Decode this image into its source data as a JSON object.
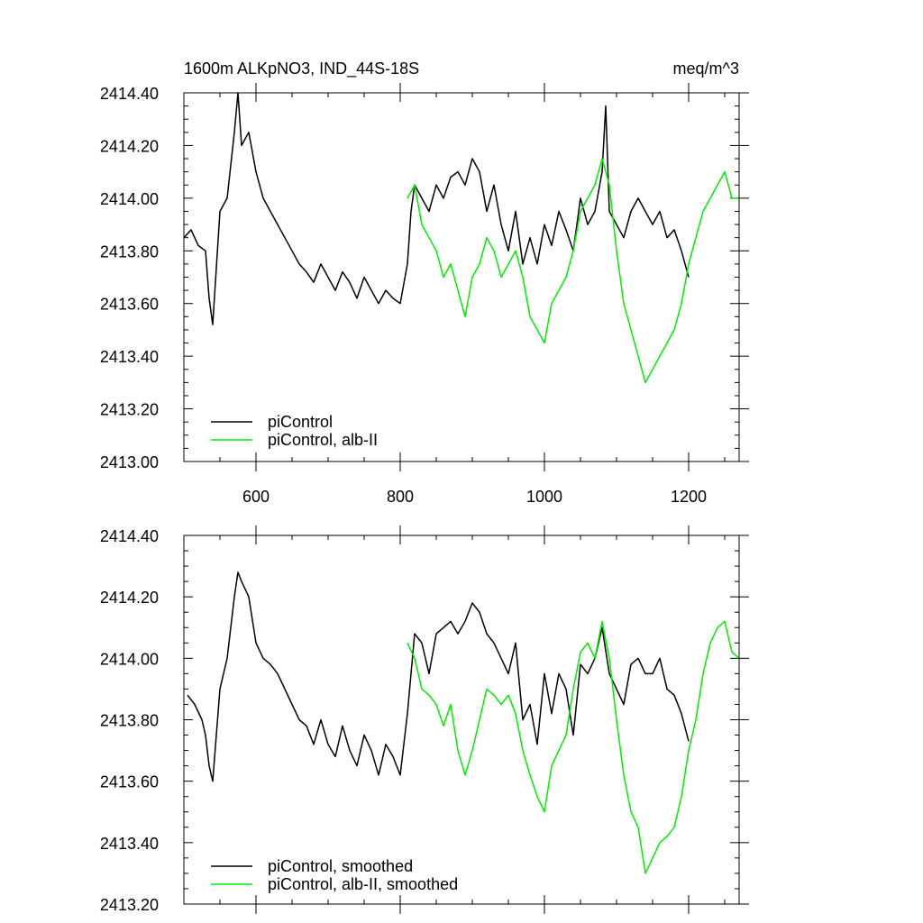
{
  "chart_data": [
    {
      "type": "line",
      "title": "1600m ALKpNO3, IND_44S-18S",
      "units": "meq/m^3",
      "xlabel": "",
      "ylabel": "",
      "xlim": [
        500,
        1270
      ],
      "ylim": [
        2413.0,
        2414.4
      ],
      "x_ticks": [
        600,
        800,
        1000,
        1200
      ],
      "x_tick_labels": [
        "600",
        "800",
        "1000",
        "1200"
      ],
      "y_ticks": [
        2413.0,
        2413.2,
        2413.4,
        2413.6,
        2413.8,
        2414.0,
        2414.2,
        2414.4
      ],
      "y_tick_labels": [
        "2413.00",
        "2413.20",
        "2413.40",
        "2413.60",
        "2413.80",
        "2414.00",
        "2414.20",
        "2414.40"
      ],
      "grid": false,
      "legend_position": "bottom-left",
      "series": [
        {
          "name": "piControl",
          "color": "#000000",
          "x": [
            500,
            510,
            520,
            530,
            535,
            540,
            550,
            560,
            570,
            575,
            580,
            590,
            600,
            610,
            620,
            630,
            640,
            650,
            660,
            670,
            680,
            690,
            700,
            710,
            720,
            730,
            740,
            750,
            760,
            770,
            780,
            790,
            800,
            810,
            815,
            820,
            830,
            840,
            850,
            860,
            870,
            880,
            890,
            900,
            910,
            920,
            930,
            940,
            950,
            960,
            970,
            980,
            990,
            1000,
            1010,
            1020,
            1030,
            1040,
            1050,
            1060,
            1070,
            1080,
            1085,
            1090,
            1100,
            1110,
            1120,
            1130,
            1140,
            1150,
            1160,
            1170,
            1180,
            1190,
            1200
          ],
          "y": [
            2413.85,
            2413.88,
            2413.82,
            2413.8,
            2413.62,
            2413.52,
            2413.95,
            2414.0,
            2414.25,
            2414.4,
            2414.2,
            2414.25,
            2414.1,
            2414.0,
            2413.95,
            2413.9,
            2413.85,
            2413.8,
            2413.75,
            2413.72,
            2413.68,
            2413.75,
            2413.7,
            2413.65,
            2413.72,
            2413.68,
            2413.62,
            2413.7,
            2413.65,
            2413.6,
            2413.65,
            2413.62,
            2413.6,
            2413.75,
            2413.95,
            2414.05,
            2414.0,
            2413.95,
            2414.05,
            2414.0,
            2414.08,
            2414.1,
            2414.05,
            2414.15,
            2414.1,
            2413.95,
            2414.05,
            2413.9,
            2413.8,
            2413.95,
            2413.75,
            2413.85,
            2413.75,
            2413.9,
            2413.82,
            2413.95,
            2413.88,
            2413.8,
            2414.0,
            2413.9,
            2413.95,
            2414.1,
            2414.35,
            2413.95,
            2413.9,
            2413.85,
            2413.95,
            2414.0,
            2413.95,
            2413.9,
            2413.95,
            2413.85,
            2413.88,
            2413.8,
            2413.7
          ]
        },
        {
          "name": "piControl, alb-II",
          "color": "#00ee00",
          "x": [
            810,
            820,
            830,
            840,
            850,
            860,
            870,
            880,
            890,
            900,
            910,
            920,
            930,
            940,
            950,
            960,
            970,
            980,
            990,
            1000,
            1010,
            1020,
            1030,
            1040,
            1050,
            1060,
            1070,
            1080,
            1090,
            1100,
            1110,
            1120,
            1130,
            1140,
            1150,
            1160,
            1170,
            1180,
            1190,
            1200,
            1210,
            1220,
            1230,
            1240,
            1250,
            1260,
            1270
          ],
          "y": [
            2414.0,
            2414.05,
            2413.9,
            2413.85,
            2413.8,
            2413.7,
            2413.75,
            2413.65,
            2413.55,
            2413.7,
            2413.75,
            2413.85,
            2413.8,
            2413.7,
            2413.75,
            2413.8,
            2413.7,
            2413.55,
            2413.5,
            2413.45,
            2413.6,
            2413.65,
            2413.7,
            2413.8,
            2413.95,
            2414.0,
            2414.05,
            2414.15,
            2414.05,
            2413.8,
            2413.6,
            2413.5,
            2413.4,
            2413.3,
            2413.35,
            2413.4,
            2413.45,
            2413.5,
            2413.6,
            2413.75,
            2413.85,
            2413.95,
            2414.0,
            2414.05,
            2414.1,
            2414.0,
            2414.0
          ]
        }
      ]
    },
    {
      "type": "line",
      "title": "",
      "units": "",
      "xlabel": "",
      "ylabel": "",
      "xlim": [
        500,
        1270
      ],
      "ylim": [
        2413.2,
        2414.4
      ],
      "x_ticks": [
        600,
        800,
        1000,
        1200
      ],
      "x_tick_labels": [],
      "y_ticks": [
        2413.2,
        2413.4,
        2413.6,
        2413.8,
        2414.0,
        2414.2,
        2414.4
      ],
      "y_tick_labels": [
        "2413.20",
        "2413.40",
        "2413.60",
        "2413.80",
        "2414.00",
        "2414.20",
        "2414.40"
      ],
      "grid": false,
      "legend_position": "bottom-left",
      "series": [
        {
          "name": "piControl, smoothed",
          "color": "#000000",
          "x": [
            505,
            515,
            525,
            530,
            535,
            540,
            550,
            560,
            570,
            575,
            580,
            590,
            600,
            610,
            620,
            630,
            640,
            650,
            660,
            670,
            680,
            690,
            700,
            710,
            720,
            730,
            740,
            750,
            760,
            770,
            780,
            790,
            800,
            810,
            820,
            830,
            840,
            850,
            860,
            870,
            880,
            890,
            900,
            910,
            920,
            930,
            940,
            950,
            960,
            970,
            980,
            990,
            1000,
            1010,
            1020,
            1030,
            1040,
            1050,
            1060,
            1070,
            1080,
            1090,
            1100,
            1110,
            1120,
            1130,
            1140,
            1150,
            1160,
            1170,
            1180,
            1190,
            1200
          ],
          "y": [
            2413.88,
            2413.85,
            2413.8,
            2413.75,
            2413.65,
            2413.6,
            2413.9,
            2414.0,
            2414.2,
            2414.28,
            2414.25,
            2414.2,
            2414.05,
            2414.0,
            2413.98,
            2413.95,
            2413.9,
            2413.85,
            2413.8,
            2413.78,
            2413.72,
            2413.8,
            2413.72,
            2413.68,
            2413.78,
            2413.7,
            2413.65,
            2413.75,
            2413.7,
            2413.62,
            2413.72,
            2413.68,
            2413.62,
            2413.82,
            2414.08,
            2414.05,
            2413.95,
            2414.08,
            2414.1,
            2414.12,
            2414.08,
            2414.12,
            2414.18,
            2414.15,
            2414.08,
            2414.05,
            2414.0,
            2413.95,
            2414.05,
            2413.8,
            2413.85,
            2413.72,
            2413.95,
            2413.82,
            2413.95,
            2413.9,
            2413.75,
            2413.98,
            2413.95,
            2414.0,
            2414.1,
            2413.95,
            2413.9,
            2413.85,
            2413.98,
            2414.0,
            2413.95,
            2413.95,
            2414.0,
            2413.9,
            2413.88,
            2413.82,
            2413.73
          ]
        },
        {
          "name": "piControl, alb-II, smoothed",
          "color": "#00ee00",
          "x": [
            810,
            820,
            830,
            840,
            850,
            860,
            870,
            880,
            890,
            900,
            910,
            920,
            930,
            940,
            950,
            960,
            970,
            980,
            990,
            1000,
            1010,
            1020,
            1030,
            1040,
            1050,
            1060,
            1070,
            1080,
            1090,
            1100,
            1110,
            1120,
            1130,
            1140,
            1150,
            1160,
            1170,
            1180,
            1190,
            1200,
            1210,
            1220,
            1230,
            1240,
            1250,
            1260,
            1270
          ],
          "y": [
            2414.05,
            2414.0,
            2413.9,
            2413.88,
            2413.85,
            2413.78,
            2413.85,
            2413.7,
            2413.62,
            2413.7,
            2413.8,
            2413.9,
            2413.88,
            2413.85,
            2413.88,
            2413.82,
            2413.7,
            2413.62,
            2413.55,
            2413.5,
            2413.65,
            2413.7,
            2413.75,
            2413.9,
            2414.02,
            2414.05,
            2414.0,
            2414.12,
            2414.0,
            2413.8,
            2413.62,
            2413.5,
            2413.45,
            2413.3,
            2413.35,
            2413.4,
            2413.42,
            2413.45,
            2413.55,
            2413.7,
            2413.8,
            2413.95,
            2414.05,
            2414.1,
            2414.12,
            2414.02,
            2414.0
          ]
        }
      ]
    }
  ]
}
